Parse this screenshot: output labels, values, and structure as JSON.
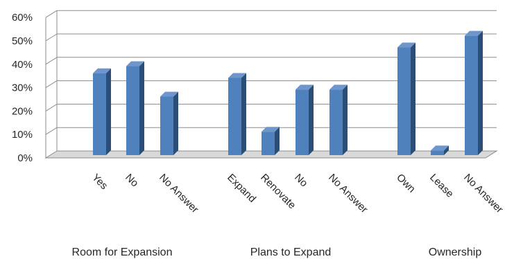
{
  "chart_data": {
    "type": "bar",
    "style": "3d-clustered-column",
    "y_axis": {
      "min": 0,
      "max": 0.6,
      "step": 0.1,
      "format": "percent",
      "tick_labels": [
        "0%",
        "10%",
        "20%",
        "30%",
        "40%",
        "50%",
        "60%"
      ]
    },
    "grid": true,
    "groups": [
      {
        "label": "Room for Expansion",
        "categories": [
          "Yes",
          "No",
          "No Answer"
        ],
        "values": [
          0.35,
          0.38,
          0.25
        ]
      },
      {
        "label": "Plans to Expand",
        "categories": [
          "Expand",
          "Renovate",
          "No",
          "No Answer"
        ],
        "values": [
          0.33,
          0.1,
          0.28,
          0.28
        ]
      },
      {
        "label": "Ownership",
        "categories": [
          "Own",
          "Lease",
          "No Answer"
        ],
        "values": [
          0.46,
          0.02,
          0.51
        ]
      }
    ],
    "colors": {
      "bar_front": "#4f81bd",
      "bar_side": "#2c4d75",
      "bar_top": "#6e96cc",
      "grid": "#8c8c8c",
      "floor": "#d9d9d9"
    }
  }
}
